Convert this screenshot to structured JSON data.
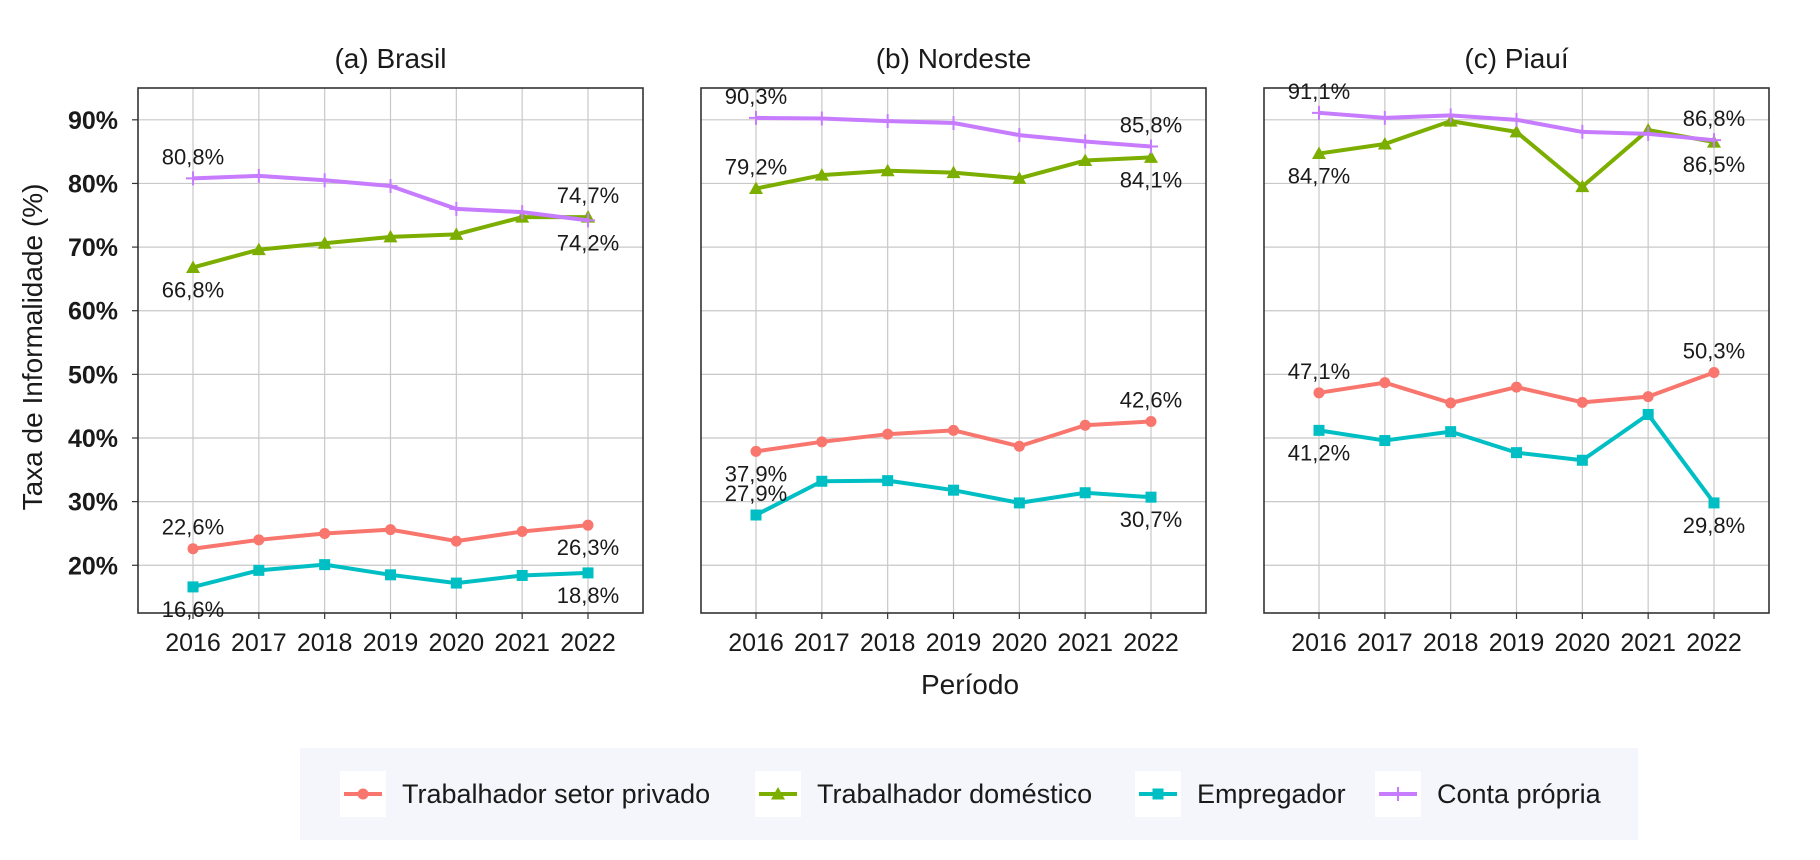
{
  "chart_data": {
    "type": "line",
    "ylabel": "Taxa de Informalidade (%)",
    "xlabel": "Período",
    "x": [
      "2016",
      "2017",
      "2018",
      "2019",
      "2020",
      "2021",
      "2022"
    ],
    "ylim": [
      12.5,
      95
    ],
    "yticks": [
      20,
      30,
      40,
      50,
      60,
      70,
      80,
      90
    ],
    "ytick_labels": [
      "20%",
      "30%",
      "40%",
      "50%",
      "60%",
      "70%",
      "80%",
      "90%"
    ],
    "grid": true,
    "legend_position": "bottom",
    "series_styles": [
      {
        "name": "Trabalhador setor privado",
        "color": "#F8766D",
        "marker": "circle"
      },
      {
        "name": "Trabalhador doméstico",
        "color": "#7CAE00",
        "marker": "triangle"
      },
      {
        "name": "Empregador",
        "color": "#00BFC4",
        "marker": "square"
      },
      {
        "name": "Conta própria",
        "color": "#C77CFF",
        "marker": "plus"
      }
    ],
    "panels": [
      {
        "title": "(a) Brasil",
        "series": [
          {
            "name": "Trabalhador setor privado",
            "values": [
              22.6,
              24.0,
              25.0,
              25.6,
              23.8,
              25.3,
              26.3
            ]
          },
          {
            "name": "Trabalhador doméstico",
            "values": [
              66.8,
              69.6,
              70.6,
              71.6,
              72.0,
              74.7,
              74.7
            ]
          },
          {
            "name": "Empregador",
            "values": [
              16.6,
              19.2,
              20.1,
              18.5,
              17.2,
              18.4,
              18.8
            ]
          },
          {
            "name": "Conta própria",
            "values": [
              80.8,
              81.2,
              80.5,
              79.6,
              76.0,
              75.5,
              74.2
            ]
          }
        ],
        "annotations": [
          {
            "text": "80,8%",
            "series": 3,
            "index": 0,
            "pos": "above"
          },
          {
            "text": "66,8%",
            "series": 1,
            "index": 0,
            "pos": "below"
          },
          {
            "text": "22,6%",
            "series": 0,
            "index": 0,
            "pos": "above"
          },
          {
            "text": "16,6%",
            "series": 2,
            "index": 0,
            "pos": "below"
          },
          {
            "text": "74,7%",
            "series": 1,
            "index": 6,
            "pos": "above"
          },
          {
            "text": "74,2%",
            "series": 3,
            "index": 6,
            "pos": "below"
          },
          {
            "text": "26,3%",
            "series": 0,
            "index": 6,
            "pos": "below"
          },
          {
            "text": "18,8%",
            "series": 2,
            "index": 6,
            "pos": "below"
          }
        ]
      },
      {
        "title": "(b) Nordeste",
        "series": [
          {
            "name": "Trabalhador setor privado",
            "values": [
              37.9,
              39.4,
              40.6,
              41.2,
              38.7,
              42.0,
              42.6
            ]
          },
          {
            "name": "Trabalhador doméstico",
            "values": [
              79.2,
              81.3,
              82.0,
              81.7,
              80.8,
              83.6,
              84.1
            ]
          },
          {
            "name": "Empregador",
            "values": [
              27.9,
              33.2,
              33.3,
              31.8,
              29.8,
              31.4,
              30.7
            ]
          },
          {
            "name": "Conta própria",
            "values": [
              90.3,
              90.2,
              89.8,
              89.5,
              87.6,
              86.6,
              85.8
            ]
          }
        ],
        "annotations": [
          {
            "text": "90,3%",
            "series": 3,
            "index": 0,
            "pos": "above"
          },
          {
            "text": "79,2%",
            "series": 1,
            "index": 0,
            "pos": "above"
          },
          {
            "text": "37,9%",
            "series": 0,
            "index": 0,
            "pos": "below"
          },
          {
            "text": "27,9%",
            "series": 2,
            "index": 0,
            "pos": "above"
          },
          {
            "text": "85,8%",
            "series": 3,
            "index": 6,
            "pos": "above"
          },
          {
            "text": "84,1%",
            "series": 1,
            "index": 6,
            "pos": "below"
          },
          {
            "text": "42,6%",
            "series": 0,
            "index": 6,
            "pos": "above"
          },
          {
            "text": "30,7%",
            "series": 2,
            "index": 6,
            "pos": "below"
          }
        ]
      },
      {
        "title": "(c) Piauí",
        "series": [
          {
            "name": "Trabalhador setor privado",
            "values": [
              47.1,
              48.7,
              45.5,
              48.0,
              45.6,
              46.5,
              50.3
            ]
          },
          {
            "name": "Trabalhador doméstico",
            "values": [
              84.7,
              86.2,
              89.8,
              88.1,
              79.5,
              88.4,
              86.5
            ]
          },
          {
            "name": "Empregador",
            "values": [
              41.2,
              39.6,
              41.0,
              37.7,
              36.5,
              43.7,
              29.8
            ]
          },
          {
            "name": "Conta própria",
            "values": [
              91.1,
              90.3,
              90.7,
              90.0,
              88.1,
              87.8,
              86.8
            ]
          }
        ],
        "annotations": [
          {
            "text": "91,1%",
            "series": 3,
            "index": 0,
            "pos": "above"
          },
          {
            "text": "84,7%",
            "series": 1,
            "index": 0,
            "pos": "below"
          },
          {
            "text": "47,1%",
            "series": 0,
            "index": 0,
            "pos": "above"
          },
          {
            "text": "41,2%",
            "series": 2,
            "index": 0,
            "pos": "below"
          },
          {
            "text": "86,8%",
            "series": 3,
            "index": 6,
            "pos": "above"
          },
          {
            "text": "86,5%",
            "series": 1,
            "index": 6,
            "pos": "below"
          },
          {
            "text": "50,3%",
            "series": 0,
            "index": 6,
            "pos": "above"
          },
          {
            "text": "29,8%",
            "series": 2,
            "index": 6,
            "pos": "below"
          }
        ]
      }
    ]
  }
}
